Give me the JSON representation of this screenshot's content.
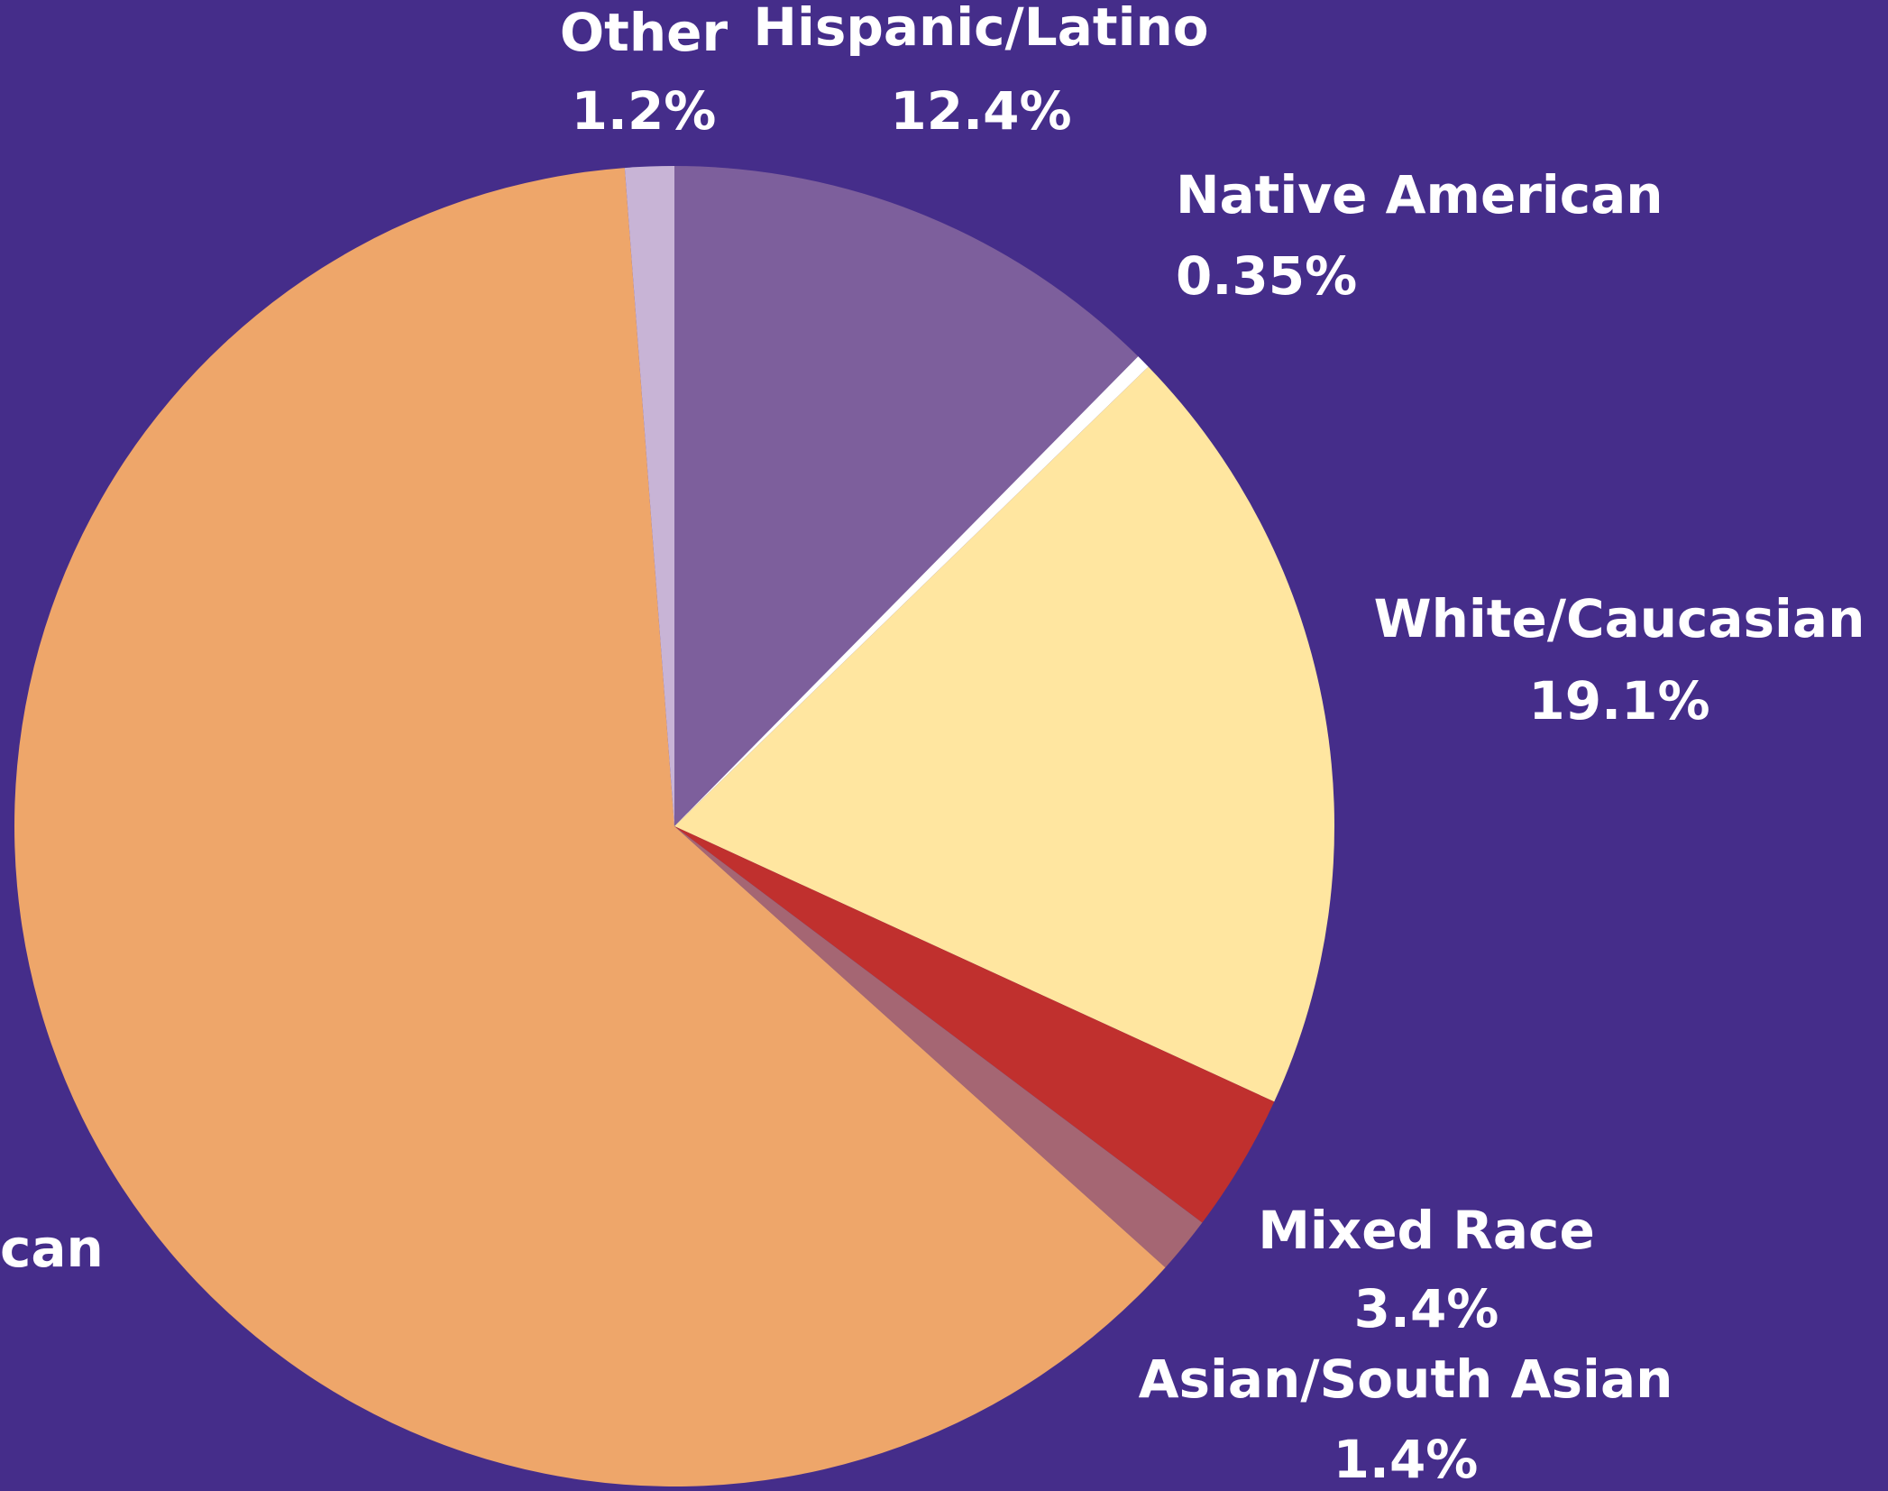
{
  "chart_data": {
    "type": "pie",
    "categories": [
      "Hispanic/Latino",
      "Native American",
      "White/Caucasian",
      "Mixed Race",
      "Asian/South Asian",
      "can",
      "Other"
    ],
    "values": [
      12.4,
      0.35,
      19.1,
      3.4,
      1.4,
      62.15,
      1.2
    ],
    "value_labels": [
      "12.4%",
      "0.35%",
      "19.1%",
      "3.4%",
      "1.4%",
      null,
      "1.2%"
    ],
    "colors": [
      "#7d5f9c",
      "#ffffff",
      "#ffe6a0",
      "#c0302e",
      "#a56673",
      "#eea66a",
      "#c8b4d6"
    ]
  }
}
